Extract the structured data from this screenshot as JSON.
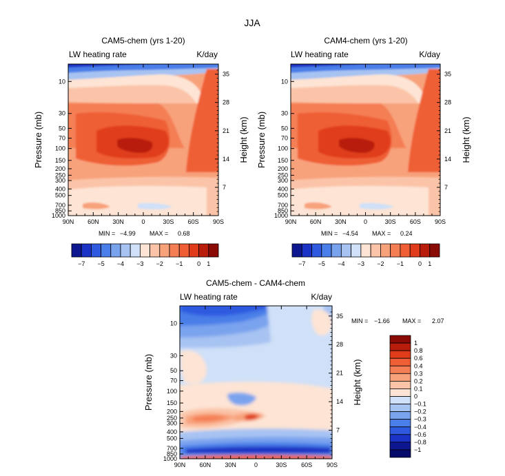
{
  "figure_title": "JJA",
  "colors": {
    "diverging": [
      "#0c1790",
      "#1a33c4",
      "#2f5ae0",
      "#4a7ee8",
      "#7aa3ee",
      "#a7c3f2",
      "#cfe0f8",
      "#fde4d4",
      "#fbc4a8",
      "#f8a27c",
      "#f47f55",
      "#ef5e35",
      "#e03c1c",
      "#b81d0c",
      "#8a0a06"
    ]
  },
  "chart_data": [
    {
      "type": "heatmap",
      "id": "cam5",
      "title": "CAM5-chem (yrs 1-20)",
      "left_label": "LW heating rate",
      "units": "K/day",
      "xlabel": "",
      "ylabel": "Pressure (mb)",
      "ylabel_right": "Height (km)",
      "x_ticks": [
        "90N",
        "60N",
        "30N",
        "0",
        "30S",
        "60S",
        "90S"
      ],
      "y_ticks": [
        "10",
        "30",
        "50",
        "70",
        "100",
        "150",
        "200",
        "250",
        "300",
        "400",
        "500",
        "700",
        "850",
        "1000"
      ],
      "y_ticks_right": [
        "35",
        "28",
        "21",
        "14",
        "7"
      ],
      "min_label": "MIN =",
      "min_value": "-4.99",
      "max_label": "MAX =",
      "max_value": "0.68",
      "colorbar_labels": [
        "-7",
        "-5",
        "-4",
        "-3",
        "-2",
        "-1",
        "0",
        "1"
      ]
    },
    {
      "type": "heatmap",
      "id": "cam4",
      "title": "CAM4-chem (yrs 1-20)",
      "left_label": "LW heating rate",
      "units": "K/day",
      "xlabel": "",
      "ylabel": "Pressure (mb)",
      "ylabel_right": "Height (km)",
      "x_ticks": [
        "90N",
        "60N",
        "30N",
        "0",
        "30S",
        "60S",
        "90S"
      ],
      "y_ticks": [
        "10",
        "30",
        "50",
        "70",
        "100",
        "150",
        "200",
        "250",
        "300",
        "400",
        "500",
        "700",
        "850",
        "1000"
      ],
      "y_ticks_right": [
        "35",
        "28",
        "21",
        "14",
        "7"
      ],
      "min_label": "MIN =",
      "min_value": "-4.54",
      "max_label": "MAX =",
      "max_value": "0.24",
      "colorbar_labels": [
        "-7",
        "-5",
        "-4",
        "-3",
        "-2",
        "-1",
        "0",
        "1"
      ]
    },
    {
      "type": "heatmap",
      "id": "diff",
      "title": "CAM5-chem - CAM4-chem",
      "left_label": "LW heating rate",
      "units": "K/day",
      "xlabel": "",
      "ylabel": "Pressure (mb)",
      "ylabel_right": "Height (km)",
      "x_ticks": [
        "90N",
        "60N",
        "30N",
        "0",
        "30S",
        "60S",
        "90S"
      ],
      "y_ticks": [
        "10",
        "30",
        "50",
        "70",
        "100",
        "150",
        "200",
        "250",
        "300",
        "400",
        "500",
        "700",
        "850",
        "1000"
      ],
      "y_ticks_right": [
        "35",
        "28",
        "21",
        "14",
        "7"
      ],
      "min_label": "MIN =",
      "min_value": "-1.66",
      "max_label": "MAX =",
      "max_value": "2.07",
      "colorbar_labels": [
        "1",
        "0.8",
        "0.6",
        "0.4",
        "0.3",
        "0.2",
        "0.1",
        "0",
        "-0.1",
        "-0.2",
        "-0.3",
        "-0.4",
        "-0.6",
        "-0.8",
        "-1"
      ]
    }
  ]
}
